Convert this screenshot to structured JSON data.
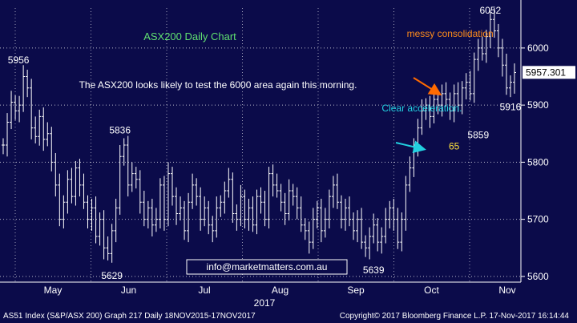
{
  "chart_data": {
    "type": "candlestick",
    "title": "ASX200 Daily Chart",
    "subtitle": "The ASX200 looks likely to test the 6000 area again this morning.",
    "year_label": "2017",
    "ylim": [
      5590,
      6070
    ],
    "y_ticks": [
      5600,
      5700,
      5800,
      5900,
      6000
    ],
    "y_tick_labels": [
      "5600",
      "5700",
      "5800",
      "5900",
      "6000"
    ],
    "x_month_labels": [
      "May",
      "Jun",
      "Jul",
      "Aug",
      "Sep",
      "Oct",
      "Nov"
    ],
    "last_price": "5957.301",
    "last_value": 5957.3,
    "grid": true,
    "series": [
      {
        "values": [
          5830,
          5870,
          5905,
          5890,
          5900,
          5950,
          5930,
          5860,
          5845,
          5880,
          5840,
          5850,
          5800,
          5760,
          5700,
          5730,
          5770,
          5740,
          5790,
          5760,
          5730,
          5700,
          5720,
          5670,
          5700,
          5650,
          5640,
          5680,
          5720,
          5810,
          5830,
          5760,
          5780,
          5770,
          5730,
          5700,
          5720,
          5690,
          5700,
          5760,
          5700,
          5780,
          5740,
          5710,
          5720,
          5680,
          5730,
          5760,
          5740,
          5700,
          5720,
          5690,
          5680,
          5720,
          5730,
          5750,
          5770,
          5710,
          5700,
          5740,
          5700,
          5720,
          5690,
          5740,
          5730,
          5700,
          5780,
          5760,
          5750,
          5730,
          5710,
          5750,
          5740,
          5720,
          5690,
          5680,
          5660,
          5700,
          5720,
          5680,
          5700,
          5740,
          5760,
          5730,
          5700,
          5720,
          5700,
          5680,
          5700,
          5660,
          5650,
          5670,
          5690,
          5660,
          5670,
          5700,
          5720,
          5700,
          5660,
          5700,
          5760,
          5790,
          5830,
          5860,
          5890,
          5900,
          5880,
          5910,
          5900,
          5920,
          5910,
          5890,
          5920,
          5900,
          5930,
          5940,
          5920,
          5980,
          6000,
          5990,
          6020,
          6050,
          6030,
          6000,
          5970,
          5930,
          5940,
          5957
        ]
      }
    ],
    "annotations": [
      {
        "text": "5956",
        "x": 5,
        "y": 5956
      },
      {
        "text": "5836",
        "x": 29,
        "y": 5836
      },
      {
        "text": "5629",
        "x": 27,
        "y": 5629
      },
      {
        "text": "5639",
        "x": 92,
        "y": 5639
      },
      {
        "text": "messy consolidation",
        "x": 111,
        "y": 5958
      },
      {
        "text": "Clear acceleration.",
        "x": 104,
        "y": 5858
      },
      {
        "text": "65",
        "x": 112,
        "y": 5842
      },
      {
        "text": "5859",
        "x": 118,
        "y": 5859
      },
      {
        "text": "6052",
        "x": 121,
        "y": 6052
      },
      {
        "text": "5916",
        "x": 126,
        "y": 5916
      }
    ]
  },
  "watermark": "info@marketmatters.com.au",
  "footer": {
    "left": "AS51 Index (S&P/ASX 200) Graph 217  Daily 18NOV2015-17NOV2017",
    "right": "Copyright© 2017 Bloomberg Finance L.P.     17-Nov-2017 16:14:44"
  }
}
